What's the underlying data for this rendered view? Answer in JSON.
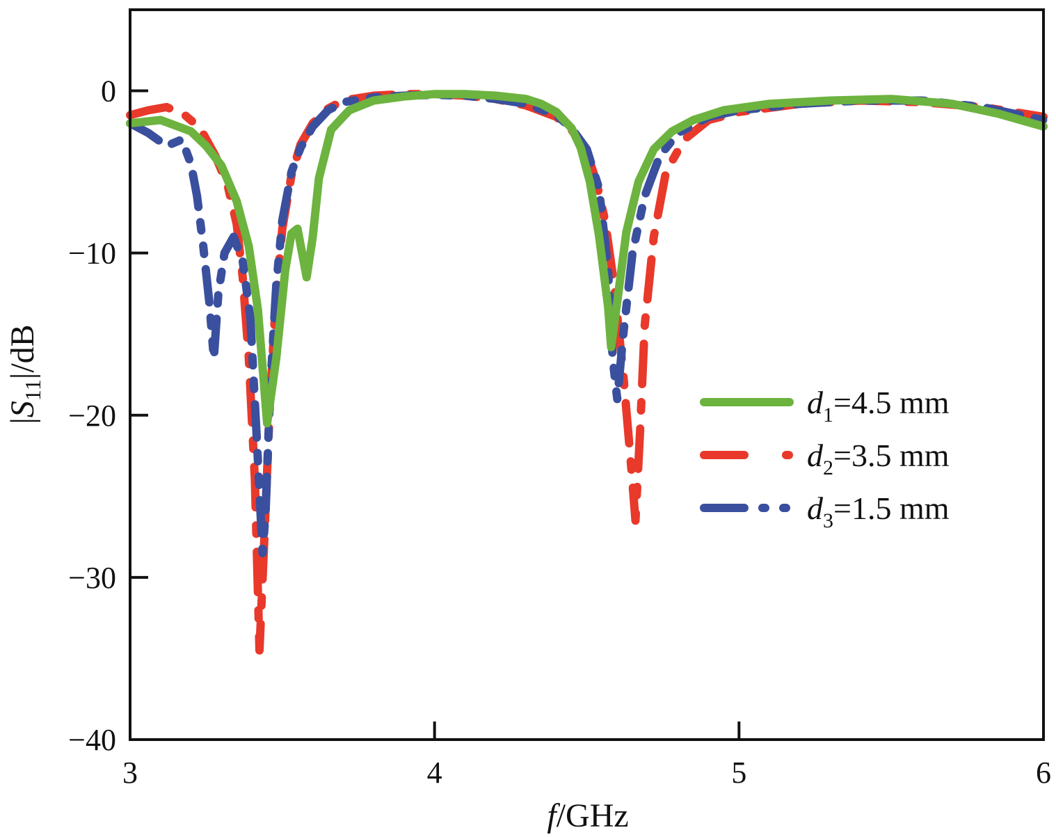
{
  "chart_data": {
    "type": "line",
    "title": "",
    "xlabel": {
      "var": "f",
      "unit": "/GHz"
    },
    "ylabel": {
      "prefix": "|",
      "var": "S",
      "sub": "11",
      "suffix": "|/dB"
    },
    "xlim": [
      3,
      6
    ],
    "ylim": [
      -40,
      5
    ],
    "x_ticks": [
      "3",
      "4",
      "5",
      "6"
    ],
    "y_ticks": [
      "0",
      "−10",
      "−20",
      "−30",
      "−40"
    ],
    "x_tick_values": [
      3,
      4,
      5,
      6
    ],
    "y_tick_values": [
      0,
      -10,
      -20,
      -30,
      -40
    ],
    "grid": false,
    "legend_position": "right-middle",
    "series": [
      {
        "name": "d1=4.5 mm",
        "label": {
          "var": "d",
          "sub": "1",
          "rest": "=4.5 mm"
        },
        "color": "#6db33f",
        "style": "solid",
        "x": [
          3.0,
          3.1,
          3.2,
          3.25,
          3.3,
          3.35,
          3.39,
          3.42,
          3.45,
          3.48,
          3.51,
          3.53,
          3.55,
          3.58,
          3.6,
          3.62,
          3.66,
          3.72,
          3.8,
          3.9,
          4.0,
          4.1,
          4.2,
          4.3,
          4.35,
          4.4,
          4.45,
          4.48,
          4.51,
          4.54,
          4.57,
          4.58,
          4.6,
          4.63,
          4.67,
          4.72,
          4.78,
          4.85,
          4.95,
          5.1,
          5.3,
          5.5,
          5.7,
          5.85,
          6.0
        ],
        "y": [
          -2.0,
          -1.8,
          -2.5,
          -3.4,
          -4.6,
          -6.8,
          -9.6,
          -13.5,
          -20.5,
          -16.5,
          -11.0,
          -8.8,
          -8.5,
          -11.5,
          -9.0,
          -5.4,
          -2.4,
          -1.2,
          -0.6,
          -0.35,
          -0.2,
          -0.2,
          -0.3,
          -0.5,
          -0.8,
          -1.3,
          -2.3,
          -3.5,
          -5.6,
          -8.9,
          -13.3,
          -15.8,
          -13.0,
          -8.7,
          -5.6,
          -3.6,
          -2.5,
          -1.8,
          -1.2,
          -0.8,
          -0.6,
          -0.5,
          -0.8,
          -1.4,
          -2.2
        ]
      },
      {
        "name": "d2=3.5 mm",
        "label": {
          "var": "d",
          "sub": "2",
          "rest": "=3.5 mm"
        },
        "color": "#e8392b",
        "style": "dashdot",
        "x": [
          3.0,
          3.06,
          3.12,
          3.18,
          3.23,
          3.28,
          3.32,
          3.35,
          3.37,
          3.39,
          3.41,
          3.425,
          3.44,
          3.46,
          3.48,
          3.5,
          3.53,
          3.56,
          3.6,
          3.65,
          3.7,
          3.8,
          3.9,
          4.0,
          4.1,
          4.2,
          4.3,
          4.4,
          4.45,
          4.5,
          4.53,
          4.56,
          4.59,
          4.62,
          4.645,
          4.66,
          4.675,
          4.69,
          4.72,
          4.76,
          4.82,
          4.9,
          5.0,
          5.2,
          5.4,
          5.6,
          5.8,
          6.0
        ],
        "y": [
          -1.5,
          -1.2,
          -1.0,
          -1.5,
          -2.3,
          -4.0,
          -5.8,
          -8.2,
          -11.5,
          -16.5,
          -24.0,
          -34.5,
          -28.0,
          -19.0,
          -12.5,
          -8.5,
          -5.2,
          -3.3,
          -2.0,
          -1.1,
          -0.6,
          -0.3,
          -0.2,
          -0.2,
          -0.3,
          -0.5,
          -0.9,
          -1.6,
          -2.4,
          -3.8,
          -5.5,
          -8.0,
          -12.0,
          -17.5,
          -23.0,
          -26.5,
          -21.0,
          -14.5,
          -9.0,
          -5.0,
          -3.0,
          -1.8,
          -1.3,
          -0.8,
          -0.6,
          -0.7,
          -1.0,
          -1.6
        ]
      },
      {
        "name": "d3=1.5 mm",
        "label": {
          "var": "d",
          "sub": "3",
          "rest": "=1.5 mm"
        },
        "color": "#3a4f9e",
        "style": "dashdotdot",
        "x": [
          3.0,
          3.06,
          3.12,
          3.17,
          3.2,
          3.22,
          3.24,
          3.26,
          3.275,
          3.29,
          3.31,
          3.34,
          3.37,
          3.395,
          3.415,
          3.435,
          3.445,
          3.46,
          3.48,
          3.5,
          3.53,
          3.56,
          3.6,
          3.65,
          3.7,
          3.8,
          3.9,
          4.0,
          4.1,
          4.2,
          4.3,
          4.4,
          4.45,
          4.5,
          4.54,
          4.57,
          4.585,
          4.6,
          4.62,
          4.65,
          4.69,
          4.74,
          4.8,
          4.9,
          5.0,
          5.2,
          5.4,
          5.6,
          5.8,
          6.0
        ],
        "y": [
          -2.0,
          -2.6,
          -3.4,
          -3.0,
          -4.5,
          -6.5,
          -9.5,
          -13.0,
          -16.5,
          -12.5,
          -10.0,
          -9.0,
          -10.5,
          -14.0,
          -21.0,
          -28.5,
          -26.0,
          -18.5,
          -12.0,
          -8.0,
          -5.0,
          -3.5,
          -2.2,
          -1.2,
          -0.7,
          -0.4,
          -0.3,
          -0.25,
          -0.3,
          -0.5,
          -0.8,
          -1.5,
          -2.3,
          -3.6,
          -6.0,
          -11.0,
          -16.5,
          -19.0,
          -15.0,
          -10.0,
          -6.5,
          -4.0,
          -2.6,
          -1.6,
          -1.2,
          -0.8,
          -0.6,
          -0.6,
          -1.0,
          -1.8
        ]
      }
    ]
  }
}
